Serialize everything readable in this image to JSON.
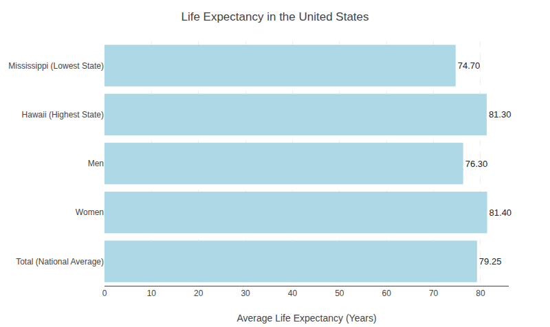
{
  "chart_data": {
    "type": "bar",
    "orientation": "horizontal",
    "title": "Life Expectancy in the United States",
    "xlabel": "Average Life Expectancy (Years)",
    "categories": [
      "Total (National Average)",
      "Women",
      "Men",
      "Hawaii (Highest State)",
      "Mississippi (Lowest State)"
    ],
    "values": [
      79.25,
      81.4,
      76.3,
      81.3,
      74.7
    ],
    "value_labels": [
      "79.25",
      "81.40",
      "76.30",
      "81.30",
      "74.70"
    ],
    "data_labels": true,
    "color": "#ADD8E6",
    "xlim": [
      0,
      86
    ],
    "xticks": [
      0,
      10,
      20,
      30,
      40,
      50,
      60,
      70,
      80
    ],
    "grid": true
  }
}
